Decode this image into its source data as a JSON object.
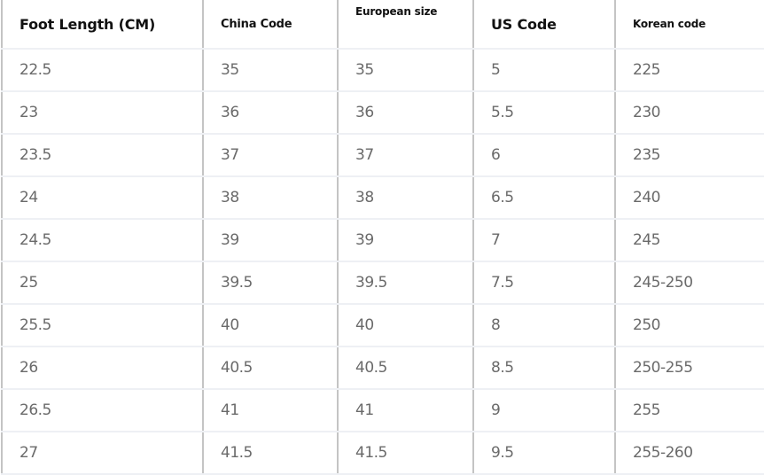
{
  "headers": [
    "Foot Length (CM)",
    "China Code",
    "European size",
    "US Code",
    "Korean code"
  ],
  "rows": [
    [
      "22.5",
      "35",
      "35",
      "5",
      "225"
    ],
    [
      "23",
      "36",
      "36",
      "5.5",
      "230"
    ],
    [
      "23.5",
      "37",
      "37",
      "6",
      "235"
    ],
    [
      "24",
      "38",
      "38",
      "6.5",
      "240"
    ],
    [
      "24.5",
      "39",
      "39",
      "7",
      "245"
    ],
    [
      "25",
      "39.5",
      "39.5",
      "7.5",
      "245-250"
    ],
    [
      "25.5",
      "40",
      "40",
      "8",
      "250"
    ],
    [
      "26",
      "40.5",
      "40.5",
      "8.5",
      "250-255"
    ],
    [
      "26.5",
      "41",
      "41",
      "9",
      "255"
    ],
    [
      "27",
      "41.5",
      "41.5",
      "9.5",
      "255-260"
    ]
  ]
}
